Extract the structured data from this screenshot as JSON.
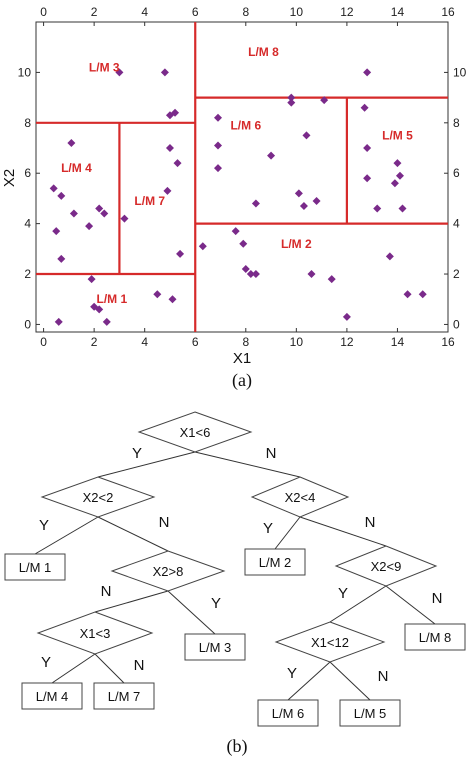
{
  "panel_a_label": "(a)",
  "panel_b_label": "(b)",
  "chart_data": {
    "type": "scatter",
    "xlabel": "X1",
    "ylabel": "X2",
    "xlim": [
      -0.3,
      16
    ],
    "ylim": [
      -0.3,
      12
    ],
    "xticks": [
      0,
      2,
      4,
      6,
      8,
      10,
      12,
      14,
      16
    ],
    "yticks": [
      0,
      2,
      4,
      6,
      8,
      10
    ],
    "series_color": "#7a2a8a",
    "split_color": "#d62a2a",
    "splits": [
      {
        "axis": "x",
        "at": 6,
        "from": -0.3,
        "to": 12
      },
      {
        "axis": "y",
        "at": 2,
        "from": -0.3,
        "to": 6
      },
      {
        "axis": "y",
        "at": 8,
        "from": -0.3,
        "to": 6
      },
      {
        "axis": "x",
        "at": 3,
        "from": 2,
        "to": 8
      },
      {
        "axis": "y",
        "at": 4,
        "from": 6,
        "to": 16
      },
      {
        "axis": "y",
        "at": 9,
        "from": 6,
        "to": 16
      },
      {
        "axis": "x",
        "at": 12,
        "from": 4,
        "to": 9
      }
    ],
    "regions": [
      {
        "label": "L/M 1",
        "x": 2.7,
        "y": 1.0
      },
      {
        "label": "L/M 2",
        "x": 10.0,
        "y": 3.2
      },
      {
        "label": "L/M 3",
        "x": 2.4,
        "y": 10.2
      },
      {
        "label": "L/M 4",
        "x": 1.3,
        "y": 6.2
      },
      {
        "label": "L/M 5",
        "x": 14.0,
        "y": 7.5
      },
      {
        "label": "L/M 6",
        "x": 8.0,
        "y": 7.9
      },
      {
        "label": "L/M 7",
        "x": 4.2,
        "y": 4.9
      },
      {
        "label": "L/M 8",
        "x": 8.7,
        "y": 10.8
      }
    ],
    "points": [
      [
        3.0,
        10.0
      ],
      [
        4.8,
        10.0
      ],
      [
        5.0,
        8.3
      ],
      [
        5.2,
        8.4
      ],
      [
        0.4,
        5.4
      ],
      [
        0.5,
        3.7
      ],
      [
        0.7,
        5.1
      ],
      [
        0.7,
        2.6
      ],
      [
        1.1,
        7.2
      ],
      [
        1.2,
        4.4
      ],
      [
        1.8,
        3.9
      ],
      [
        2.2,
        4.6
      ],
      [
        2.4,
        4.4
      ],
      [
        3.2,
        4.2
      ],
      [
        4.9,
        5.3
      ],
      [
        5.0,
        7.0
      ],
      [
        5.3,
        6.4
      ],
      [
        5.4,
        2.8
      ],
      [
        1.9,
        1.8
      ],
      [
        2.0,
        0.7
      ],
      [
        2.2,
        0.6
      ],
      [
        2.5,
        0.1
      ],
      [
        0.6,
        0.1
      ],
      [
        4.5,
        1.2
      ],
      [
        5.1,
        1.0
      ],
      [
        6.3,
        3.1
      ],
      [
        7.6,
        3.7
      ],
      [
        7.9,
        3.2
      ],
      [
        8.0,
        2.2
      ],
      [
        8.2,
        2.0
      ],
      [
        8.4,
        2.0
      ],
      [
        10.6,
        2.0
      ],
      [
        11.4,
        1.8
      ],
      [
        12.0,
        0.3
      ],
      [
        13.7,
        2.7
      ],
      [
        14.4,
        1.2
      ],
      [
        15.0,
        1.2
      ],
      [
        6.9,
        8.2
      ],
      [
        6.9,
        7.1
      ],
      [
        6.9,
        6.2
      ],
      [
        8.4,
        4.8
      ],
      [
        9.0,
        6.7
      ],
      [
        9.8,
        8.8
      ],
      [
        9.8,
        9.0
      ],
      [
        10.1,
        5.2
      ],
      [
        10.3,
        4.7
      ],
      [
        10.4,
        7.5
      ],
      [
        10.8,
        4.9
      ],
      [
        11.1,
        8.9
      ],
      [
        12.7,
        8.6
      ],
      [
        12.8,
        7.0
      ],
      [
        12.8,
        5.8
      ],
      [
        13.2,
        4.6
      ],
      [
        13.9,
        5.6
      ],
      [
        14.0,
        6.4
      ],
      [
        14.1,
        5.9
      ],
      [
        14.2,
        4.6
      ],
      [
        12.8,
        10.0
      ]
    ]
  },
  "tree": {
    "nodes": [
      {
        "id": "n1",
        "label": "X1<6",
        "kind": "decision"
      },
      {
        "id": "n2",
        "label": "X2<2",
        "kind": "decision"
      },
      {
        "id": "n3",
        "label": "X2<4",
        "kind": "decision"
      },
      {
        "id": "n4",
        "label": "X2>8",
        "kind": "decision"
      },
      {
        "id": "n5",
        "label": "X2<9",
        "kind": "decision"
      },
      {
        "id": "n6",
        "label": "X1<3",
        "kind": "decision"
      },
      {
        "id": "n7",
        "label": "X1<12",
        "kind": "decision"
      },
      {
        "id": "l1",
        "label": "L/M 1",
        "kind": "leaf"
      },
      {
        "id": "l2",
        "label": "L/M 2",
        "kind": "leaf"
      },
      {
        "id": "l3",
        "label": "L/M 3",
        "kind": "leaf"
      },
      {
        "id": "l4",
        "label": "L/M 4",
        "kind": "leaf"
      },
      {
        "id": "l5",
        "label": "L/M 5",
        "kind": "leaf"
      },
      {
        "id": "l6",
        "label": "L/M 6",
        "kind": "leaf"
      },
      {
        "id": "l7",
        "label": "L/M 7",
        "kind": "leaf"
      },
      {
        "id": "l8",
        "label": "L/M 8",
        "kind": "leaf"
      }
    ],
    "edges": [
      {
        "from": "n1",
        "to": "n2",
        "label": "Y"
      },
      {
        "from": "n1",
        "to": "n3",
        "label": "N"
      },
      {
        "from": "n2",
        "to": "l1",
        "label": "Y"
      },
      {
        "from": "n2",
        "to": "n4",
        "label": "N"
      },
      {
        "from": "n3",
        "to": "l2",
        "label": "Y"
      },
      {
        "from": "n3",
        "to": "n5",
        "label": "N"
      },
      {
        "from": "n4",
        "to": "n6",
        "label": "N"
      },
      {
        "from": "n4",
        "to": "l3",
        "label": "Y"
      },
      {
        "from": "n5",
        "to": "n7",
        "label": "Y"
      },
      {
        "from": "n5",
        "to": "l8",
        "label": "N"
      },
      {
        "from": "n6",
        "to": "l4",
        "label": "Y"
      },
      {
        "from": "n6",
        "to": "l7",
        "label": "N"
      },
      {
        "from": "n7",
        "to": "l6",
        "label": "Y"
      },
      {
        "from": "n7",
        "to": "l5",
        "label": "N"
      }
    ]
  }
}
